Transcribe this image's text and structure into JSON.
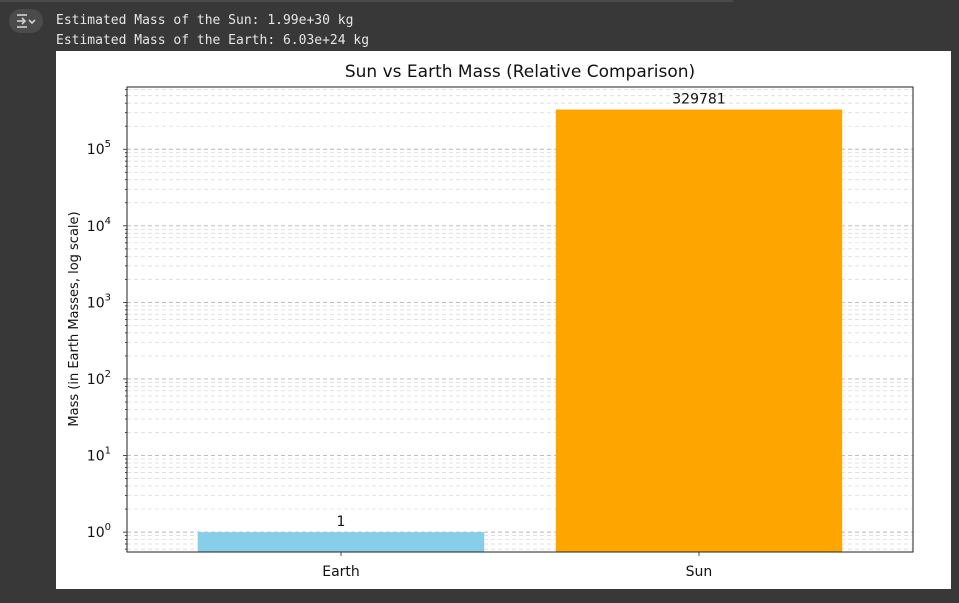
{
  "output": {
    "lines": [
      "Estimated Mass of the Sun: 1.99e+30 kg",
      "Estimated Mass of the Earth: 6.03e+24 kg"
    ]
  },
  "icons": {
    "output_toggle": "output-collapse-icon"
  },
  "chart_data": {
    "type": "bar",
    "title": "Sun vs Earth Mass (Relative Comparison)",
    "xlabel": "",
    "ylabel": "Mass (in Earth Masses, log scale)",
    "yscale": "log",
    "categories": [
      "Earth",
      "Sun"
    ],
    "values": [
      1,
      329781
    ],
    "data_labels": [
      "1",
      "329781"
    ],
    "colors": [
      "#87ceeb",
      "#ffa500"
    ],
    "ylim": [
      0.55,
      650000
    ],
    "yticks": [
      {
        "value": 1,
        "base": "10",
        "exp": "0"
      },
      {
        "value": 10,
        "base": "10",
        "exp": "1"
      },
      {
        "value": 100,
        "base": "10",
        "exp": "2"
      },
      {
        "value": 1000,
        "base": "10",
        "exp": "3"
      },
      {
        "value": 10000,
        "base": "10",
        "exp": "4"
      },
      {
        "value": 100000,
        "base": "10",
        "exp": "5"
      }
    ],
    "grid": "y, major and minor, dashed"
  }
}
